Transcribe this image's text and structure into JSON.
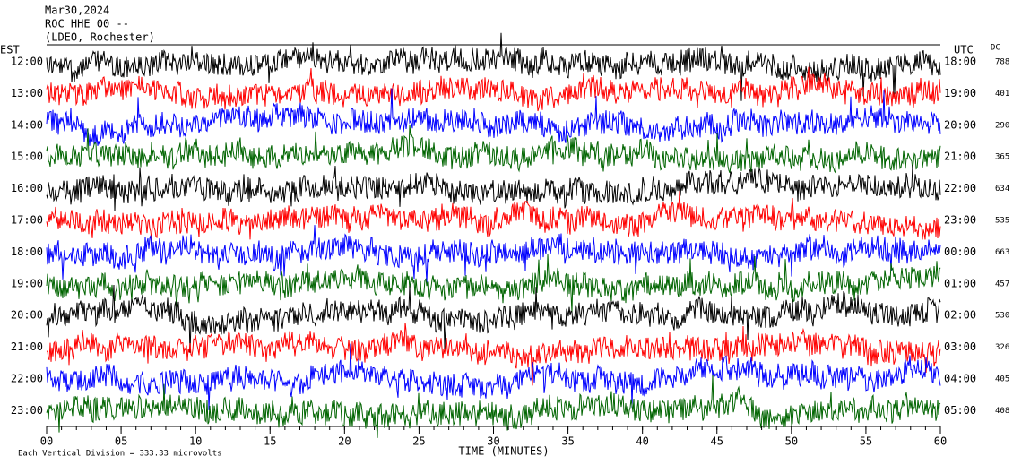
{
  "chart_data": {
    "type": "helicorder",
    "header": {
      "date": "Mar30,2024",
      "station": "ROC HHE 00 --",
      "source": "(LDEO, Rochester)"
    },
    "left_axis_label": "EST",
    "right_axis_label": "UTC",
    "dc_label": "DC",
    "est_times": [
      "12:00",
      "13:00",
      "14:00",
      "15:00",
      "16:00",
      "17:00",
      "18:00",
      "19:00",
      "20:00",
      "21:00",
      "22:00",
      "23:00"
    ],
    "utc_times": [
      "18:00",
      "19:00",
      "20:00",
      "21:00",
      "22:00",
      "23:00",
      "00:00",
      "01:00",
      "02:00",
      "03:00",
      "04:00",
      "05:00"
    ],
    "dc_values": [
      788,
      401,
      290,
      365,
      634,
      535,
      663,
      457,
      530,
      326,
      405,
      408
    ],
    "colors": [
      "#000000",
      "#ff0000",
      "#0000ff",
      "#006400"
    ],
    "xlabel": "TIME (MINUTES)",
    "xlim": [
      0,
      60
    ],
    "xticks": [
      {
        "value": 0,
        "label": "00"
      },
      {
        "value": 5,
        "label": "05"
      },
      10,
      15,
      20,
      25,
      30,
      35,
      40,
      45,
      50,
      55,
      60
    ],
    "footer": "Each Vertical Division = 333.33 microvolts"
  }
}
